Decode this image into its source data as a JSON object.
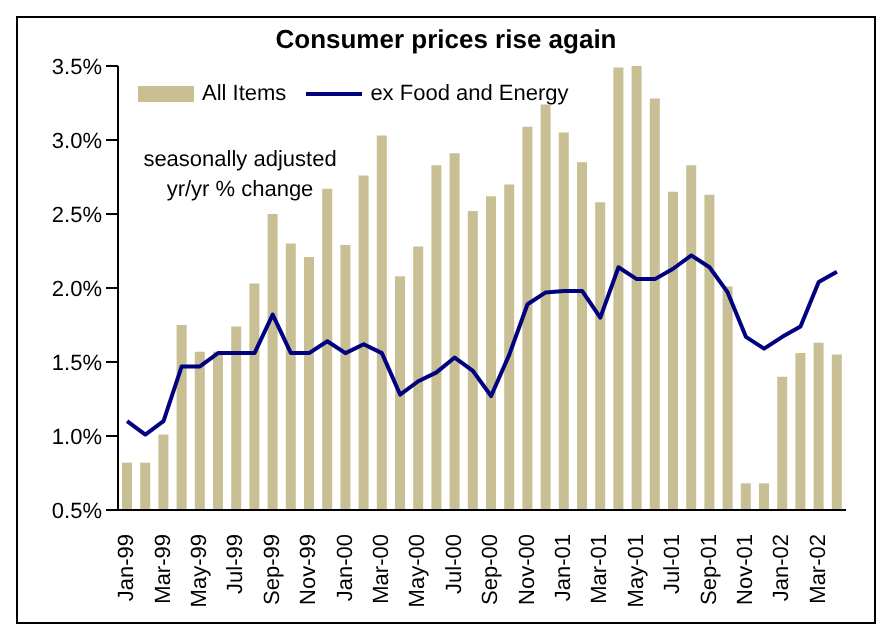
{
  "chart_data": {
    "type": "bar",
    "title": "Consumer prices rise again",
    "annotations": [
      "seasonally adjusted yr/yr % change"
    ],
    "categories": [
      "Jan-99",
      null,
      "Mar-99",
      null,
      "May-99",
      null,
      "Jul-99",
      null,
      "Sep-99",
      null,
      "Nov-99",
      null,
      "Jan-00",
      null,
      "Mar-00",
      null,
      "May-00",
      null,
      "Jul-00",
      null,
      "Sep-00",
      null,
      "Nov-00",
      null,
      "Jan-01",
      null,
      "Mar-01",
      null,
      "May-01",
      null,
      "Jul-01",
      null,
      "Sep-01",
      null,
      "Nov-01",
      null,
      "Jan-02",
      null,
      "Mar-02",
      null
    ],
    "series": [
      {
        "name": "All Items",
        "color": "#c8bf94",
        "values": [
          0.82,
          0.82,
          1.01,
          1.75,
          1.57,
          1.57,
          1.74,
          2.03,
          2.5,
          2.3,
          2.21,
          2.67,
          2.29,
          2.76,
          3.03,
          2.08,
          2.28,
          2.83,
          2.91,
          2.52,
          2.62,
          2.7,
          3.09,
          3.24,
          3.05,
          2.85,
          2.58,
          3.49,
          3.5,
          3.28,
          2.65,
          2.83,
          2.63,
          2.01,
          0.68,
          0.68,
          1.4,
          1.56,
          1.63,
          1.55
        ]
      },
      {
        "name": "ex Food and Energy",
        "type": "line",
        "color": "#000080",
        "values": [
          1.1,
          1.01,
          1.1,
          1.47,
          1.47,
          1.56,
          1.56,
          1.56,
          1.82,
          1.56,
          1.56,
          1.64,
          1.56,
          1.62,
          1.56,
          1.28,
          1.37,
          1.43,
          1.53,
          1.44,
          1.27,
          1.55,
          1.89,
          1.97,
          1.98,
          1.98,
          1.8,
          2.14,
          2.06,
          2.06,
          2.13,
          2.22,
          2.14,
          1.97,
          1.67,
          1.59,
          1.67,
          1.74,
          2.04,
          2.11
        ]
      }
    ],
    "ylim": [
      0.5,
      3.5
    ],
    "yticks": [
      {
        "value": 0.5,
        "label": "0.5%"
      },
      {
        "value": 1,
        "label": "1.0%"
      },
      {
        "value": 1.5,
        "label": "1.5%"
      },
      {
        "value": 2,
        "label": "2.0%"
      },
      {
        "value": 2.5,
        "label": "2.5%"
      },
      {
        "value": 3,
        "label": "3.0%"
      },
      {
        "value": 3.5,
        "label": "3.5%"
      }
    ],
    "grid": false,
    "legend": "top left",
    "marker": "none",
    "line_style": "solid"
  }
}
